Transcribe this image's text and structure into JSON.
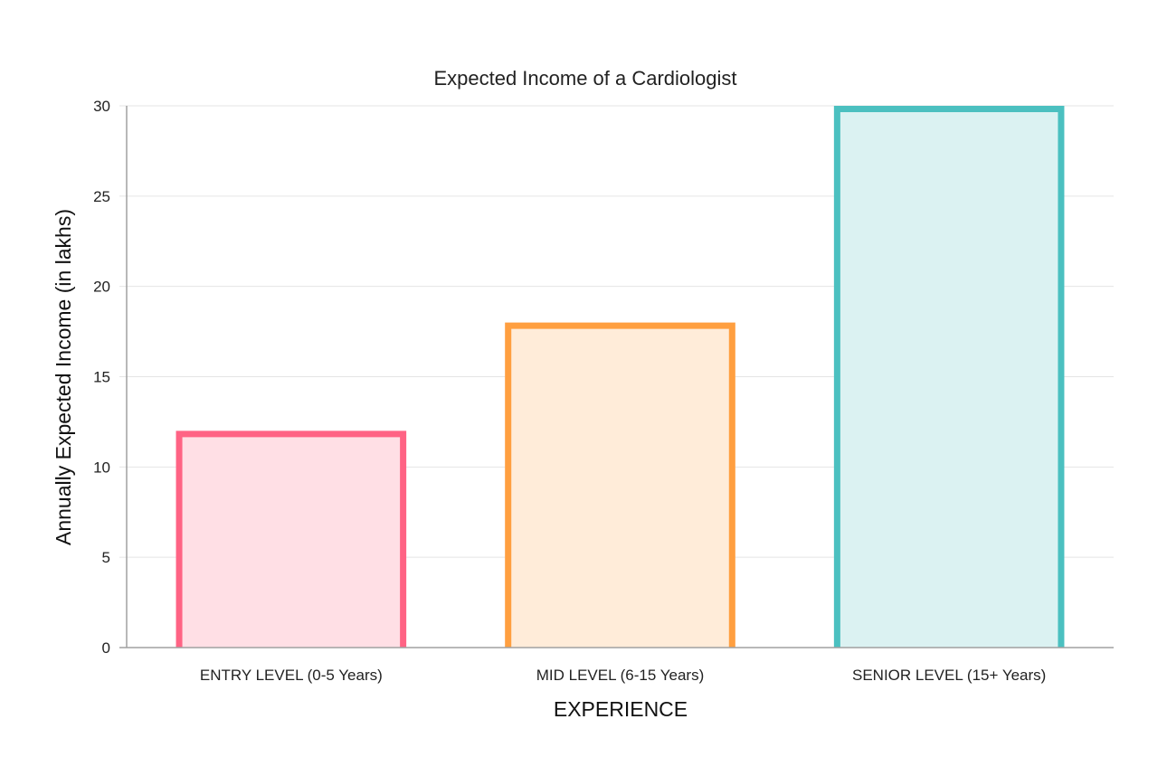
{
  "chart_data": {
    "type": "bar",
    "title": "Expected Income of a Cardiologist",
    "xlabel": "EXPERIENCE",
    "ylabel": "Annually Expected Income (in lakhs)",
    "categories": [
      "ENTRY LEVEL (0-5 Years)",
      "MID LEVEL (6-15 Years)",
      "SENIOR LEVEL (15+ Years)"
    ],
    "values": [
      12,
      18,
      30
    ],
    "ylim": [
      0,
      30
    ],
    "yticks": [
      0,
      5,
      10,
      15,
      20,
      25,
      30
    ],
    "grid": true,
    "legend": "none",
    "colors": {
      "borders": [
        "#ff6384",
        "#ff9f40",
        "#4bc0c0"
      ],
      "fills": [
        "#ffdfe5",
        "#ffecd9",
        "#dbf2f2"
      ],
      "grid": "#e5e5e5",
      "axis": "#a0a0a0"
    }
  }
}
